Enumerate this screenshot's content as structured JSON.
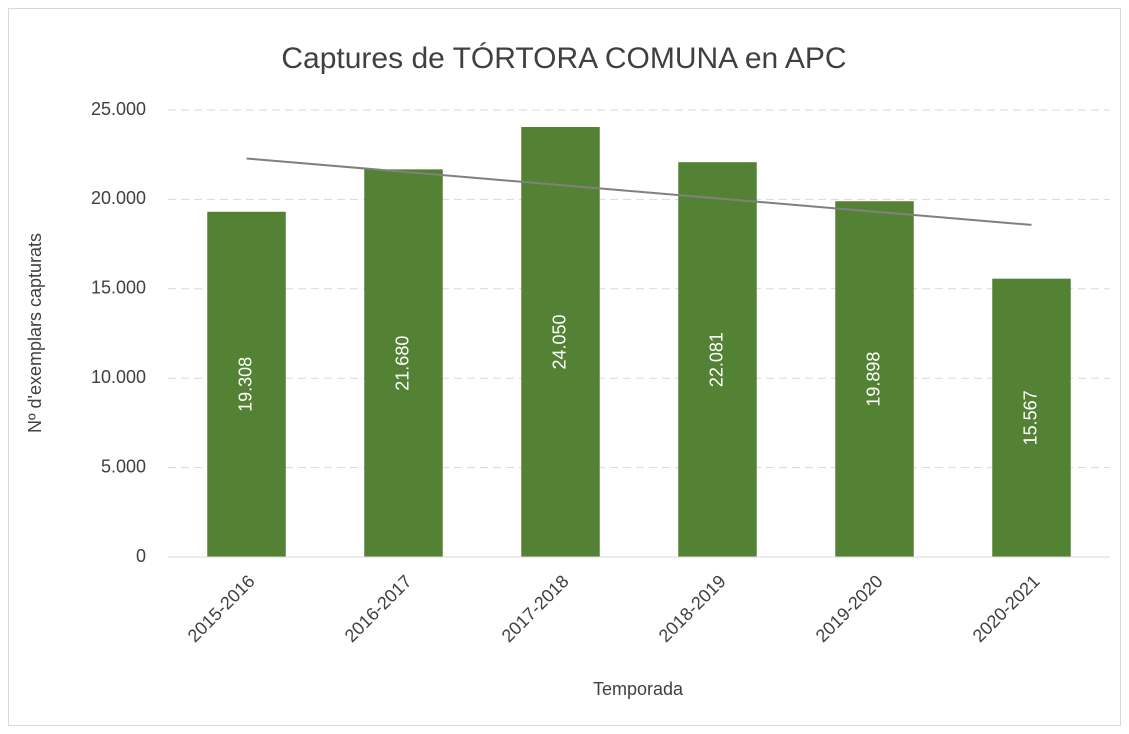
{
  "chart_data": {
    "type": "bar",
    "title": "Captures de TÓRTORA COMUNA en APC",
    "x_label": "Temporada",
    "y_label": "Nº d'exemplars capturats",
    "categories": [
      "2015-2016",
      "2016-2017",
      "2017-2018",
      "2018-2019",
      "2019-2020",
      "2020-2021"
    ],
    "values": [
      19308,
      21680,
      24050,
      22081,
      19898,
      15567
    ],
    "value_labels": [
      "19.308",
      "21.680",
      "24.050",
      "22.081",
      "19.898",
      "15.567"
    ],
    "color": "#548235",
    "ylim": [
      0,
      25000
    ],
    "yticks": [
      0,
      {
        "value": 5000,
        "label": "5.000"
      },
      {
        "value": 10000,
        "label": "10.000"
      },
      {
        "value": 15000,
        "label": "15.000"
      },
      {
        "value": 20000,
        "label": "20.000"
      },
      {
        "value": 25000,
        "label": "25.000"
      }
    ],
    "grid": true,
    "trendline": true,
    "trendline_color": "#808080"
  }
}
